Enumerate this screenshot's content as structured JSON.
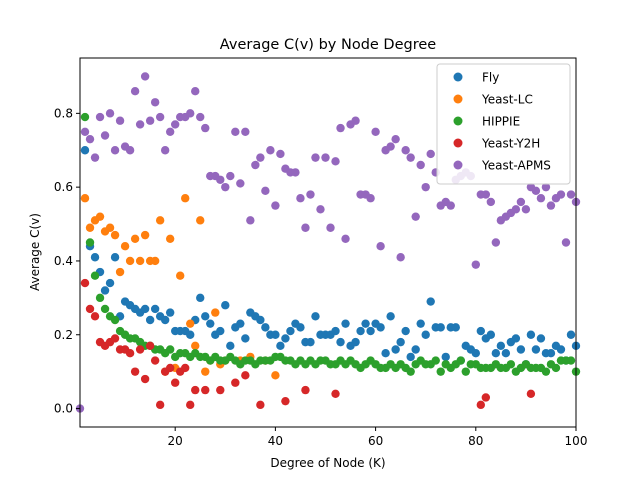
{
  "chart_data": {
    "type": "scatter",
    "title": "Average C(v) by Node Degree",
    "xlabel": "Degree of Node (K)",
    "ylabel": "Average C(v)",
    "xlim": [
      1,
      100
    ],
    "ylim": [
      -0.05,
      0.95
    ],
    "xticks": [
      "20",
      "40",
      "60",
      "80",
      "100"
    ],
    "xtick_values": [
      20,
      40,
      60,
      80,
      100
    ],
    "yticks": [
      "0.0",
      "0.2",
      "0.4",
      "0.6",
      "0.8"
    ],
    "ytick_values": [
      0.0,
      0.2,
      0.4,
      0.6,
      0.8
    ],
    "grid": false,
    "legend_position": "top-right",
    "series": [
      {
        "name": "Fly",
        "color": "#1f77b4",
        "x": [
          2,
          3,
          4,
          5,
          6,
          7,
          8,
          9,
          10,
          11,
          12,
          13,
          14,
          15,
          16,
          17,
          18,
          19,
          20,
          21,
          22,
          23,
          24,
          25,
          26,
          27,
          28,
          29,
          30,
          31,
          32,
          33,
          34,
          35,
          36,
          37,
          38,
          39,
          40,
          41,
          42,
          43,
          44,
          45,
          46,
          47,
          48,
          49,
          50,
          51,
          52,
          53,
          54,
          55,
          56,
          57,
          58,
          59,
          60,
          61,
          62,
          63,
          64,
          65,
          66,
          67,
          68,
          69,
          70,
          71,
          72,
          73,
          74,
          75,
          76,
          77,
          78,
          79,
          80,
          81,
          82,
          83,
          84,
          85,
          86,
          87,
          88,
          89,
          90,
          91,
          92,
          93,
          94,
          95,
          96,
          97,
          98,
          99,
          100
        ],
        "y": [
          0.7,
          0.44,
          0.41,
          0.37,
          0.32,
          0.34,
          0.41,
          0.25,
          0.29,
          0.28,
          0.27,
          0.26,
          0.27,
          0.24,
          0.27,
          0.25,
          0.24,
          0.26,
          0.21,
          0.21,
          0.21,
          0.2,
          0.24,
          0.3,
          0.25,
          0.23,
          0.2,
          0.21,
          0.28,
          0.17,
          0.22,
          0.23,
          0.19,
          0.26,
          0.25,
          0.24,
          0.22,
          0.2,
          0.2,
          0.17,
          0.19,
          0.21,
          0.23,
          0.22,
          0.18,
          0.18,
          0.25,
          0.2,
          0.2,
          0.2,
          0.21,
          0.18,
          0.23,
          0.17,
          0.18,
          0.21,
          0.23,
          0.21,
          0.23,
          0.22,
          0.15,
          0.25,
          0.16,
          0.18,
          0.21,
          0.14,
          0.16,
          0.23,
          0.2,
          0.29,
          0.22,
          0.22,
          0.14,
          0.22,
          0.22,
          0.13,
          0.17,
          0.16,
          0.15,
          0.21,
          0.19,
          0.2,
          0.15,
          0.17,
          0.15,
          0.18,
          0.19,
          0.16,
          0.12,
          0.2,
          0.16,
          0.19,
          0.15,
          0.15,
          0.17,
          0.16,
          0.13,
          0.2,
          0.17
        ]
      },
      {
        "name": "Yeast-LC",
        "color": "#ff7f0e",
        "x": [
          2,
          3,
          4,
          5,
          6,
          7,
          8,
          9,
          10,
          11,
          12,
          13,
          14,
          15,
          16,
          17,
          18,
          19,
          20,
          21,
          22,
          23,
          24,
          25,
          26,
          27,
          28,
          29,
          30,
          33,
          35,
          38,
          40
        ],
        "y": [
          0.57,
          0.49,
          0.51,
          0.52,
          0.48,
          0.49,
          0.47,
          0.37,
          0.44,
          0.4,
          0.46,
          0.4,
          0.47,
          0.4,
          0.4,
          0.51,
          0.1,
          0.46,
          0.11,
          0.36,
          0.57,
          0.23,
          0.17,
          0.51,
          0.1,
          0.13,
          0.26,
          0.12,
          0.13,
          0.13,
          0.14,
          0.13,
          0.09
        ]
      },
      {
        "name": "HIPPIE",
        "color": "#2ca02c",
        "x": [
          2,
          3,
          4,
          5,
          6,
          7,
          8,
          9,
          10,
          11,
          12,
          13,
          14,
          15,
          16,
          17,
          18,
          19,
          20,
          21,
          22,
          23,
          24,
          25,
          26,
          27,
          28,
          29,
          30,
          31,
          32,
          33,
          34,
          35,
          36,
          37,
          38,
          39,
          40,
          41,
          42,
          43,
          44,
          45,
          46,
          47,
          48,
          49,
          50,
          51,
          52,
          53,
          54,
          55,
          56,
          57,
          58,
          59,
          60,
          61,
          62,
          63,
          64,
          65,
          66,
          67,
          68,
          69,
          70,
          71,
          72,
          73,
          74,
          75,
          76,
          77,
          78,
          79,
          80,
          81,
          82,
          83,
          84,
          85,
          86,
          87,
          88,
          89,
          90,
          91,
          92,
          93,
          94,
          95,
          96,
          97,
          98,
          99,
          100
        ],
        "y": [
          0.79,
          0.45,
          0.36,
          0.3,
          0.27,
          0.25,
          0.24,
          0.21,
          0.2,
          0.19,
          0.19,
          0.18,
          0.17,
          0.17,
          0.16,
          0.16,
          0.15,
          0.16,
          0.14,
          0.15,
          0.15,
          0.14,
          0.15,
          0.14,
          0.14,
          0.13,
          0.14,
          0.13,
          0.13,
          0.14,
          0.13,
          0.12,
          0.13,
          0.13,
          0.12,
          0.13,
          0.13,
          0.13,
          0.14,
          0.14,
          0.13,
          0.13,
          0.12,
          0.13,
          0.12,
          0.13,
          0.12,
          0.13,
          0.13,
          0.12,
          0.12,
          0.13,
          0.12,
          0.13,
          0.12,
          0.11,
          0.12,
          0.13,
          0.12,
          0.11,
          0.11,
          0.12,
          0.11,
          0.12,
          0.11,
          0.1,
          0.12,
          0.13,
          0.12,
          0.12,
          0.13,
          0.1,
          0.12,
          0.11,
          0.12,
          0.13,
          0.1,
          0.12,
          0.12,
          0.11,
          0.11,
          0.11,
          0.12,
          0.11,
          0.11,
          0.12,
          0.1,
          0.11,
          0.12,
          0.11,
          0.11,
          0.11,
          0.1,
          0.12,
          0.11,
          0.13,
          0.13,
          0.13,
          0.1
        ]
      },
      {
        "name": "Yeast-Y2H",
        "color": "#d62728",
        "x": [
          2,
          3,
          4,
          5,
          6,
          7,
          8,
          9,
          10,
          11,
          12,
          13,
          14,
          15,
          16,
          17,
          18,
          19,
          20,
          21,
          22,
          23,
          24,
          26,
          29,
          32,
          34,
          37,
          42,
          46,
          52,
          81,
          82,
          91
        ],
        "y": [
          0.34,
          0.27,
          0.25,
          0.18,
          0.17,
          0.18,
          0.19,
          0.16,
          0.16,
          0.15,
          0.1,
          0.16,
          0.08,
          0.17,
          0.13,
          0.01,
          0.1,
          0.11,
          0.07,
          0.1,
          0.11,
          0.01,
          0.05,
          0.05,
          0.05,
          0.07,
          0.09,
          0.01,
          0.02,
          0.05,
          0.04,
          0.01,
          0.03,
          0.04
        ]
      },
      {
        "name": "Yeast-APMS",
        "color": "#9467bd",
        "x": [
          1,
          2,
          3,
          4,
          5,
          6,
          7,
          8,
          9,
          10,
          11,
          12,
          13,
          14,
          15,
          16,
          17,
          18,
          19,
          20,
          21,
          22,
          23,
          24,
          25,
          26,
          27,
          28,
          29,
          30,
          31,
          32,
          33,
          34,
          35,
          36,
          37,
          38,
          39,
          40,
          41,
          42,
          43,
          44,
          45,
          46,
          47,
          48,
          49,
          50,
          51,
          52,
          53,
          54,
          55,
          56,
          57,
          58,
          59,
          60,
          61,
          62,
          63,
          64,
          65,
          66,
          67,
          68,
          69,
          70,
          71,
          72,
          73,
          74,
          75,
          76,
          77,
          78,
          79,
          80,
          81,
          82,
          83,
          84,
          85,
          86,
          87,
          88,
          89,
          90,
          91,
          92,
          93,
          94,
          95,
          96,
          97,
          98,
          99,
          100
        ],
        "y": [
          0.0,
          0.75,
          0.73,
          0.68,
          0.79,
          0.74,
          0.8,
          0.7,
          0.78,
          0.71,
          0.7,
          0.86,
          0.77,
          0.9,
          0.78,
          0.83,
          0.79,
          0.7,
          0.75,
          0.77,
          0.79,
          0.79,
          0.8,
          0.86,
          0.79,
          0.76,
          0.63,
          0.63,
          0.62,
          0.6,
          0.63,
          0.75,
          0.61,
          0.75,
          0.51,
          0.66,
          0.68,
          0.59,
          0.7,
          0.55,
          0.69,
          0.65,
          0.64,
          0.64,
          0.57,
          0.49,
          0.58,
          0.68,
          0.54,
          0.68,
          0.49,
          0.67,
          0.76,
          0.46,
          0.77,
          0.78,
          0.58,
          0.58,
          0.57,
          0.75,
          0.44,
          0.7,
          0.71,
          0.73,
          0.41,
          0.7,
          0.68,
          0.52,
          0.66,
          0.6,
          0.69,
          0.64,
          0.55,
          0.56,
          0.55,
          0.62,
          0.63,
          0.64,
          0.63,
          0.39,
          0.58,
          0.58,
          0.56,
          0.45,
          0.51,
          0.52,
          0.53,
          0.54,
          0.56,
          0.54,
          0.6,
          0.59,
          0.57,
          0.6,
          0.55,
          0.57,
          0.58,
          0.45,
          0.58,
          0.56
        ]
      }
    ]
  }
}
